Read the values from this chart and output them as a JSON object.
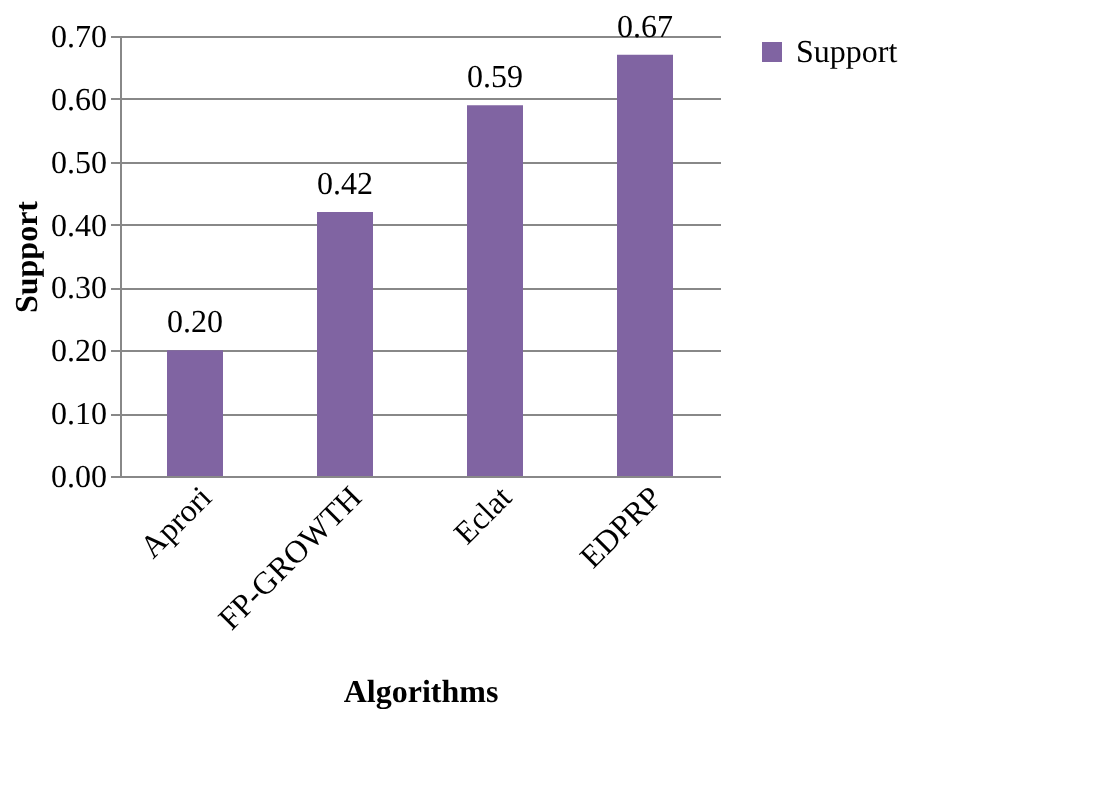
{
  "chart_data": {
    "type": "bar",
    "xlabel": "Algorithms",
    "ylabel": "Support",
    "categories": [
      "Aprori",
      "FP-GROWTH",
      "Eclat",
      "EDPRP"
    ],
    "series": [
      {
        "name": "Support",
        "color": "#8064a2",
        "values": [
          0.2,
          0.42,
          0.59,
          0.67
        ]
      }
    ],
    "value_labels": [
      "0.20",
      "0.42",
      "0.59",
      "0.67"
    ],
    "ylim": [
      0,
      0.7
    ],
    "yticks": [
      {
        "value": 0,
        "label": "0.00"
      },
      {
        "value": 0.1,
        "label": "0.10"
      },
      {
        "value": 0.2,
        "label": "0.20"
      },
      {
        "value": 0.3,
        "label": "0.30"
      },
      {
        "value": 0.4,
        "label": "0.40"
      },
      {
        "value": 0.5,
        "label": "0.50"
      },
      {
        "value": 0.6,
        "label": "0.60"
      },
      {
        "value": 0.7,
        "label": "0.70"
      }
    ],
    "grid": "y",
    "legend": "right"
  }
}
